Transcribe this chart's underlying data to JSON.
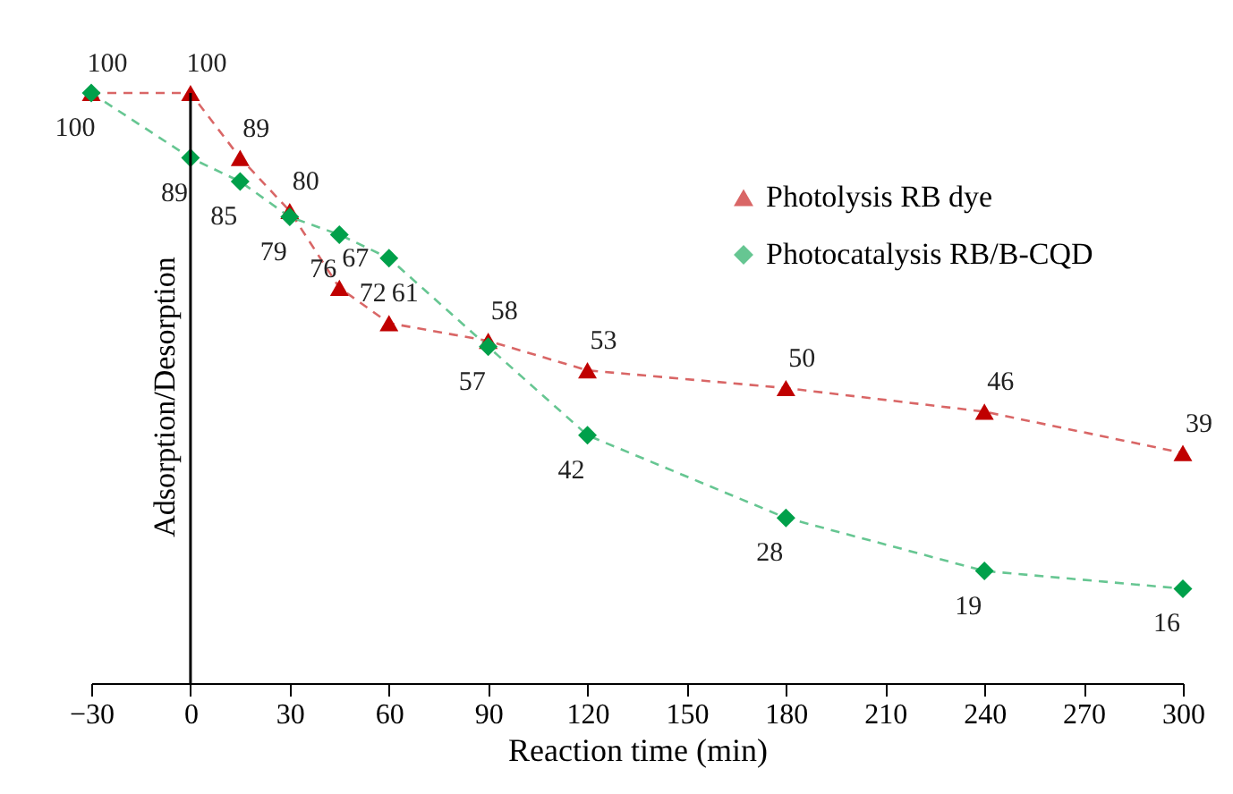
{
  "chart_data": {
    "type": "line",
    "xlabel": "Reaction time (min)",
    "x": [
      -30,
      0,
      15,
      30,
      45,
      60,
      90,
      120,
      180,
      240,
      300
    ],
    "series": [
      {
        "name": "Photolysis RB dye",
        "color": "#c00000",
        "marker": "triangle",
        "values": [
          100,
          100,
          89,
          80,
          67,
          61,
          58,
          53,
          50,
          46,
          39
        ]
      },
      {
        "name": "Photocatalysis RB/B-CQD",
        "color": "#00a04a",
        "marker": "diamond",
        "values": [
          100,
          89,
          85,
          79,
          76,
          72,
          57,
          42,
          28,
          19,
          16
        ]
      }
    ],
    "xlim": [
      -30,
      300
    ],
    "xticks": [
      -30,
      0,
      30,
      60,
      90,
      120,
      150,
      180,
      210,
      240,
      270,
      300
    ],
    "tick_labels": "x",
    "ref_lines": [
      {
        "axis": "x",
        "value": 0,
        "label": "Adsorption/Desorption",
        "color": "#000000"
      }
    ],
    "data_labels": true,
    "grid": false,
    "legend": "top right",
    "line_style": "dashed"
  }
}
